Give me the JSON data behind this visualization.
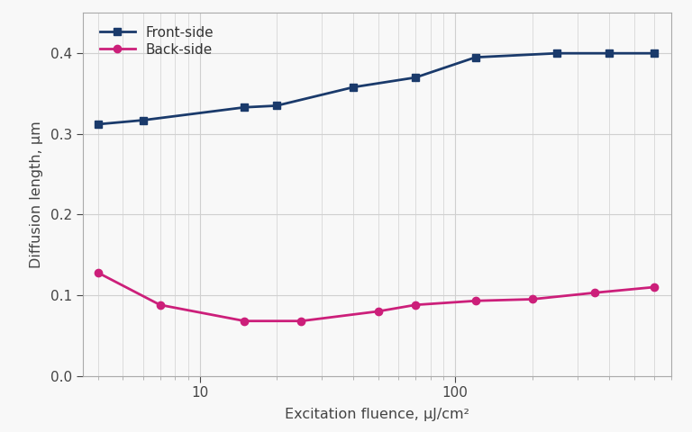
{
  "front_x": [
    4,
    6,
    15,
    20,
    40,
    70,
    120,
    250,
    400,
    600
  ],
  "front_y": [
    0.312,
    0.317,
    0.333,
    0.335,
    0.358,
    0.37,
    0.395,
    0.4,
    0.4,
    0.4
  ],
  "back_x": [
    4,
    7,
    15,
    25,
    50,
    70,
    120,
    200,
    350,
    600
  ],
  "back_y": [
    0.128,
    0.088,
    0.068,
    0.068,
    0.08,
    0.088,
    0.093,
    0.095,
    0.103,
    0.11
  ],
  "front_color": "#1a3a6b",
  "back_color": "#cc1f7a",
  "front_label": "Front-side",
  "back_label": "Back-side",
  "xlabel": "Excitation fluence, μJ/cm²",
  "ylabel": "Diffusion length, μm",
  "ylim": [
    0.0,
    0.45
  ],
  "xlim": [
    3.5,
    700
  ],
  "yticks": [
    0.0,
    0.1,
    0.2,
    0.3,
    0.4
  ],
  "background_color": "#f8f8f8",
  "grid_color": "#d0d0d0",
  "spine_color": "#aaaaaa"
}
